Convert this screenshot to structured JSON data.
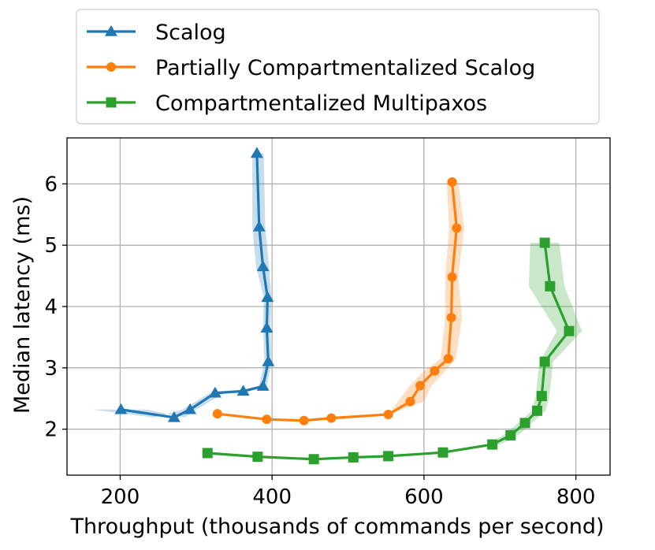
{
  "chart_data": {
    "type": "line",
    "xlabel": "Throughput (thousands of commands per second)",
    "ylabel": "Median latency (ms)",
    "xlim": [
      130,
      845
    ],
    "ylim": [
      1.25,
      6.75
    ],
    "xticks": [
      200,
      400,
      600,
      800
    ],
    "yticks": [
      2,
      3,
      4,
      5,
      6
    ],
    "grid": true,
    "legend_position": "above plot",
    "series": [
      {
        "name": "Scalog",
        "color": "#1f77b4",
        "marker": "triangle",
        "x": [
          201,
          271,
          292,
          325,
          362,
          388,
          395,
          393,
          394,
          388,
          383,
          380
        ],
        "y": [
          2.32,
          2.19,
          2.32,
          2.59,
          2.62,
          2.7,
          3.1,
          3.65,
          4.15,
          4.65,
          5.3,
          6.5
        ],
        "band_low": [
          163,
          245,
          282,
          318,
          355,
          383,
          390,
          388,
          389,
          379,
          374,
          374
        ],
        "band_high": [
          235,
          285,
          300,
          338,
          370,
          393,
          399,
          398,
          399,
          396,
          391,
          389
        ]
      },
      {
        "name": "Partially Compartmentalized Scalog",
        "color": "#ff7f0e",
        "marker": "circle",
        "x": [
          328,
          393,
          442,
          478,
          553,
          582,
          595,
          614,
          632,
          636,
          637,
          643,
          637
        ],
        "y": [
          2.25,
          2.16,
          2.14,
          2.18,
          2.24,
          2.45,
          2.71,
          2.95,
          3.15,
          3.82,
          4.48,
          5.28,
          6.03
        ],
        "band_low": [
          328,
          393,
          442,
          478,
          553,
          566,
          581,
          600,
          622,
          628,
          628,
          633,
          630
        ],
        "band_high": [
          328,
          393,
          442,
          478,
          553,
          600,
          610,
          628,
          642,
          650,
          645,
          653,
          645
        ]
      },
      {
        "name": "Compartmentalized Multipaxos",
        "color": "#2ca02c",
        "marker": "square",
        "x": [
          315,
          381,
          455,
          507,
          553,
          625,
          690,
          714,
          733,
          749,
          755,
          759,
          791,
          766,
          759
        ],
        "y": [
          1.61,
          1.55,
          1.51,
          1.54,
          1.56,
          1.62,
          1.75,
          1.9,
          2.1,
          2.3,
          2.54,
          3.1,
          3.6,
          4.33,
          5.04
        ],
        "band_low": [
          315,
          381,
          455,
          507,
          553,
          625,
          682,
          704,
          724,
          742,
          747,
          752,
          775,
          738,
          740
        ],
        "band_high": [
          315,
          381,
          455,
          507,
          553,
          625,
          700,
          724,
          742,
          760,
          765,
          770,
          808,
          785,
          778
        ]
      }
    ]
  }
}
